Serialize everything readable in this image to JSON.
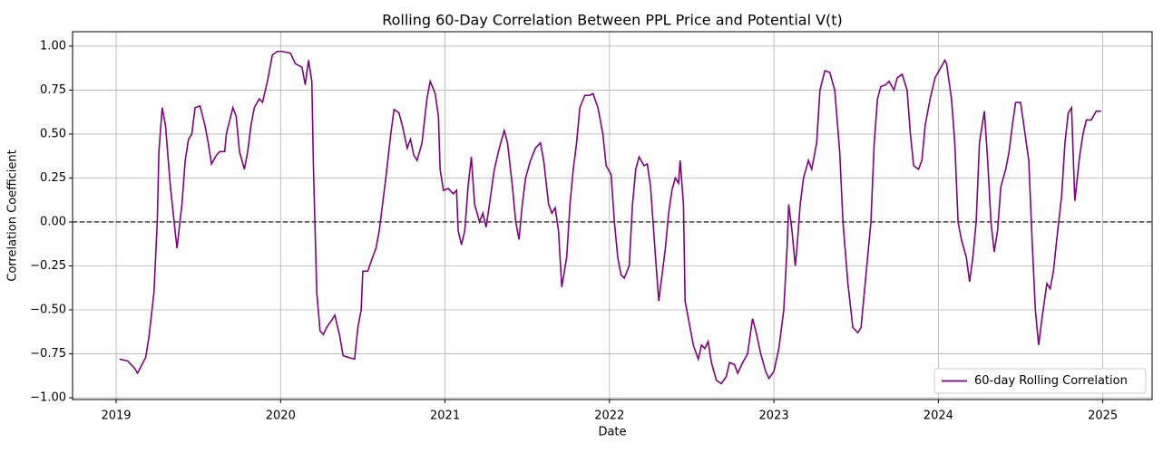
{
  "chart_data": {
    "type": "line",
    "title": "Rolling 60-Day Correlation Between PPL Price and Potential V(t)",
    "x_label": "Date",
    "y_label": "Correlation Coefficient",
    "x": [
      2019.02,
      2019.07,
      2019.11,
      2019.13,
      2019.18,
      2019.2,
      2019.23,
      2019.25,
      2019.26,
      2019.28,
      2019.3,
      2019.33,
      2019.37,
      2019.4,
      2019.42,
      2019.44,
      2019.46,
      2019.48,
      2019.51,
      2019.54,
      2019.56,
      2019.58,
      2019.61,
      2019.63,
      2019.66,
      2019.67,
      2019.71,
      2019.73,
      2019.75,
      2019.78,
      2019.8,
      2019.82,
      2019.84,
      2019.87,
      2019.89,
      2019.92,
      2019.95,
      2019.98,
      2020.01,
      2020.06,
      2020.09,
      2020.13,
      2020.15,
      2020.17,
      2020.19,
      2020.2,
      2020.22,
      2020.24,
      2020.26,
      2020.28,
      2020.31,
      2020.33,
      2020.36,
      2020.38,
      2020.41,
      2020.45,
      2020.47,
      2020.49,
      2020.5,
      2020.53,
      2020.56,
      2020.58,
      2020.6,
      2020.62,
      2020.64,
      2020.67,
      2020.69,
      2020.72,
      2020.74,
      2020.77,
      2020.79,
      2020.81,
      2020.83,
      2020.86,
      2020.89,
      2020.91,
      2020.94,
      2020.96,
      2020.97,
      2020.99,
      2021.02,
      2021.05,
      2021.07,
      2021.08,
      2021.1,
      2021.12,
      2021.14,
      2021.16,
      2021.18,
      2021.21,
      2021.23,
      2021.25,
      2021.27,
      2021.3,
      2021.33,
      2021.36,
      2021.38,
      2021.41,
      2021.43,
      2021.45,
      2021.47,
      2021.49,
      2021.52,
      2021.55,
      2021.58,
      2021.6,
      2021.63,
      2021.65,
      2021.67,
      2021.69,
      2021.71,
      2021.74,
      2021.76,
      2021.78,
      2021.8,
      2021.82,
      2021.85,
      2021.88,
      2021.9,
      2021.93,
      2021.96,
      2021.98,
      2022.01,
      2022.03,
      2022.05,
      2022.07,
      2022.09,
      2022.12,
      2022.14,
      2022.16,
      2022.18,
      2022.21,
      2022.23,
      2022.25,
      2022.28,
      2022.3,
      2022.32,
      2022.34,
      2022.36,
      2022.38,
      2022.4,
      2022.42,
      2022.43,
      2022.45,
      2022.46,
      2022.49,
      2022.51,
      2022.54,
      2022.56,
      2022.58,
      2022.6,
      2022.62,
      2022.65,
      2022.68,
      2022.71,
      2022.73,
      2022.76,
      2022.78,
      2022.81,
      2022.84,
      2022.87,
      2022.89,
      2022.92,
      2022.95,
      2022.97,
      2023.0,
      2023.03,
      2023.06,
      2023.08,
      2023.09,
      2023.11,
      2023.13,
      2023.14,
      2023.16,
      2023.18,
      2023.21,
      2023.23,
      2023.26,
      2023.28,
      2023.31,
      2023.34,
      2023.37,
      2023.4,
      2023.42,
      2023.45,
      2023.48,
      2023.51,
      2023.53,
      2023.56,
      2023.59,
      2023.61,
      2023.63,
      2023.65,
      2023.68,
      2023.7,
      2023.73,
      2023.75,
      2023.78,
      2023.81,
      2023.83,
      2023.85,
      2023.88,
      2023.9,
      2023.92,
      2023.95,
      2023.98,
      2024.01,
      2024.04,
      2024.05,
      2024.08,
      2024.1,
      2024.12,
      2024.14,
      2024.17,
      2024.19,
      2024.21,
      2024.23,
      2024.25,
      2024.28,
      2024.3,
      2024.32,
      2024.34,
      2024.36,
      2024.38,
      2024.41,
      2024.43,
      2024.45,
      2024.47,
      2024.5,
      2024.52,
      2024.55,
      2024.57,
      2024.59,
      2024.61,
      2024.63,
      2024.66,
      2024.68,
      2024.7,
      2024.72,
      2024.75,
      2024.77,
      2024.79,
      2024.81,
      2024.83,
      2024.86,
      2024.88,
      2024.9,
      2024.93,
      2024.96,
      2024.99
    ],
    "series": [
      {
        "name": "60-day Rolling Correlation",
        "color": "#800080",
        "values": [
          -0.78,
          -0.79,
          -0.83,
          -0.86,
          -0.77,
          -0.65,
          -0.4,
          0.0,
          0.4,
          0.65,
          0.55,
          0.2,
          -0.15,
          0.1,
          0.35,
          0.47,
          0.5,
          0.65,
          0.66,
          0.55,
          0.45,
          0.33,
          0.38,
          0.4,
          0.4,
          0.5,
          0.65,
          0.6,
          0.4,
          0.3,
          0.4,
          0.55,
          0.65,
          0.7,
          0.68,
          0.8,
          0.95,
          0.97,
          0.97,
          0.96,
          0.9,
          0.88,
          0.78,
          0.92,
          0.8,
          0.3,
          -0.4,
          -0.62,
          -0.64,
          -0.6,
          -0.56,
          -0.53,
          -0.65,
          -0.76,
          -0.77,
          -0.78,
          -0.6,
          -0.5,
          -0.28,
          -0.28,
          -0.2,
          -0.15,
          -0.05,
          0.1,
          0.25,
          0.5,
          0.64,
          0.62,
          0.55,
          0.42,
          0.47,
          0.38,
          0.35,
          0.45,
          0.7,
          0.8,
          0.73,
          0.6,
          0.3,
          0.18,
          0.19,
          0.16,
          0.18,
          -0.05,
          -0.13,
          -0.05,
          0.2,
          0.37,
          0.1,
          0.0,
          0.05,
          -0.03,
          0.1,
          0.3,
          0.42,
          0.52,
          0.45,
          0.2,
          0.0,
          -0.1,
          0.1,
          0.25,
          0.35,
          0.42,
          0.45,
          0.35,
          0.1,
          0.05,
          0.08,
          -0.05,
          -0.37,
          -0.2,
          0.1,
          0.3,
          0.45,
          0.65,
          0.72,
          0.72,
          0.73,
          0.65,
          0.5,
          0.32,
          0.27,
          0.0,
          -0.2,
          -0.3,
          -0.32,
          -0.25,
          0.1,
          0.3,
          0.37,
          0.32,
          0.33,
          0.2,
          -0.2,
          -0.45,
          -0.3,
          -0.15,
          0.05,
          0.18,
          0.25,
          0.22,
          0.35,
          0.1,
          -0.45,
          -0.6,
          -0.7,
          -0.78,
          -0.7,
          -0.72,
          -0.68,
          -0.8,
          -0.9,
          -0.92,
          -0.88,
          -0.8,
          -0.81,
          -0.86,
          -0.8,
          -0.75,
          -0.55,
          -0.62,
          -0.75,
          -0.85,
          -0.89,
          -0.85,
          -0.72,
          -0.5,
          -0.15,
          0.1,
          -0.05,
          -0.25,
          -0.15,
          0.1,
          0.25,
          0.35,
          0.3,
          0.45,
          0.75,
          0.86,
          0.85,
          0.75,
          0.4,
          0.0,
          -0.35,
          -0.6,
          -0.63,
          -0.6,
          -0.3,
          0.0,
          0.45,
          0.7,
          0.77,
          0.78,
          0.8,
          0.75,
          0.82,
          0.84,
          0.75,
          0.5,
          0.32,
          0.3,
          0.35,
          0.55,
          0.7,
          0.82,
          0.87,
          0.92,
          0.9,
          0.7,
          0.45,
          0.0,
          -0.1,
          -0.2,
          -0.34,
          -0.2,
          0.0,
          0.45,
          0.63,
          0.35,
          0.0,
          -0.17,
          -0.05,
          0.2,
          0.3,
          0.4,
          0.55,
          0.68,
          0.68,
          0.55,
          0.35,
          -0.1,
          -0.5,
          -0.7,
          -0.55,
          -0.35,
          -0.38,
          -0.28,
          -0.1,
          0.15,
          0.45,
          0.62,
          0.65,
          0.12,
          0.38,
          0.5,
          0.58,
          0.58,
          0.63,
          0.63
        ]
      }
    ],
    "hline": 0,
    "xlim": [
      2018.735,
      2025.3
    ],
    "ylim": [
      -1.01,
      1.082
    ],
    "xticks": [
      2019,
      2020,
      2021,
      2022,
      2023,
      2024,
      2025
    ],
    "yticks": [
      {
        "value": -1,
        "label": "−1.00"
      },
      {
        "value": -0.75,
        "label": "−0.75"
      },
      {
        "value": -0.5,
        "label": "−0.50"
      },
      {
        "value": -0.25,
        "label": "−0.25"
      },
      {
        "value": 0,
        "label": "0.00"
      },
      {
        "value": 0.25,
        "label": "0.25"
      },
      {
        "value": 0.5,
        "label": "0.50"
      },
      {
        "value": 0.75,
        "label": "0.75"
      },
      {
        "value": 1,
        "label": "1.00"
      }
    ],
    "grid": true,
    "legend": "lower right"
  }
}
